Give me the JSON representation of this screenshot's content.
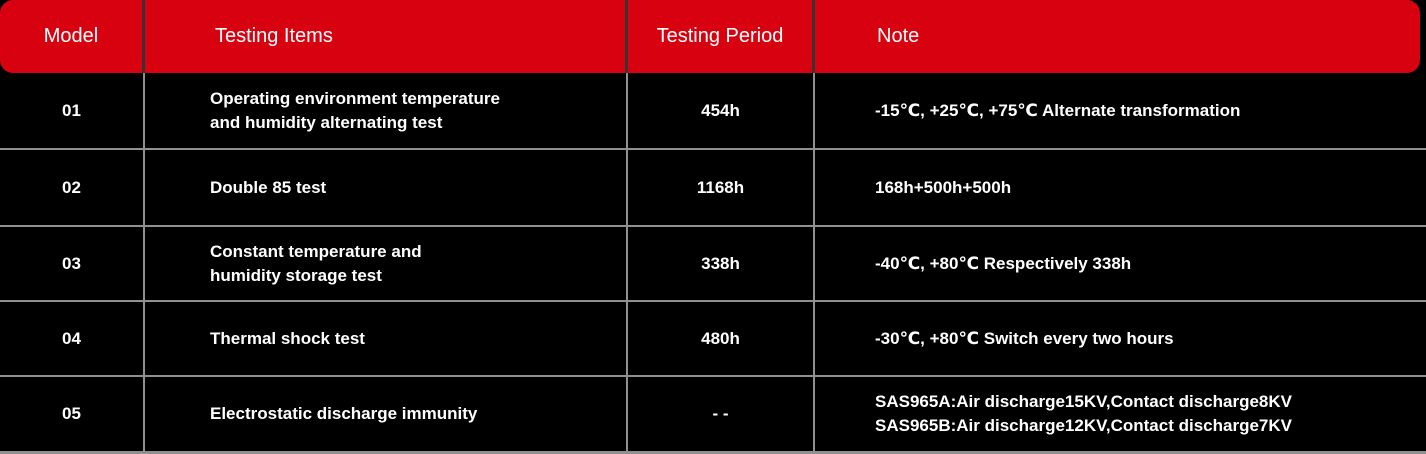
{
  "table": {
    "columns": [
      {
        "key": "model",
        "label": "Model"
      },
      {
        "key": "items",
        "label": "Testing Items"
      },
      {
        "key": "period",
        "label": "Testing Period"
      },
      {
        "key": "note",
        "label": "Note"
      }
    ],
    "rows": [
      {
        "model": "01",
        "items": [
          "Operating environment temperature",
          "and humidity alternating test"
        ],
        "period": "454h",
        "note": [
          "-15℃, +25℃, +75℃ Alternate transformation"
        ]
      },
      {
        "model": "02",
        "items": [
          "Double 85 test"
        ],
        "period": "1168h",
        "note": [
          "168h+500h+500h"
        ]
      },
      {
        "model": "03",
        "items": [
          "Constant temperature and",
          "humidity storage test"
        ],
        "period": "338h",
        "note": [
          "-40℃, +80℃ Respectively 338h"
        ]
      },
      {
        "model": "04",
        "items": [
          "Thermal shock test"
        ],
        "period": "480h",
        "note": [
          "-30℃, +80℃ Switch every two hours"
        ]
      },
      {
        "model": "05",
        "items": [
          "Electrostatic discharge immunity"
        ],
        "period": "- -",
        "note": [
          "SAS965A:Air discharge15KV,Contact discharge8KV",
          "SAS965B:Air discharge12KV,Contact discharge7KV"
        ]
      }
    ],
    "colors": {
      "header_bg": "#d8010f",
      "row_bg": "#000000",
      "separator": "#909090",
      "header_separator": "#3a3133",
      "text": "#ffffff"
    }
  }
}
